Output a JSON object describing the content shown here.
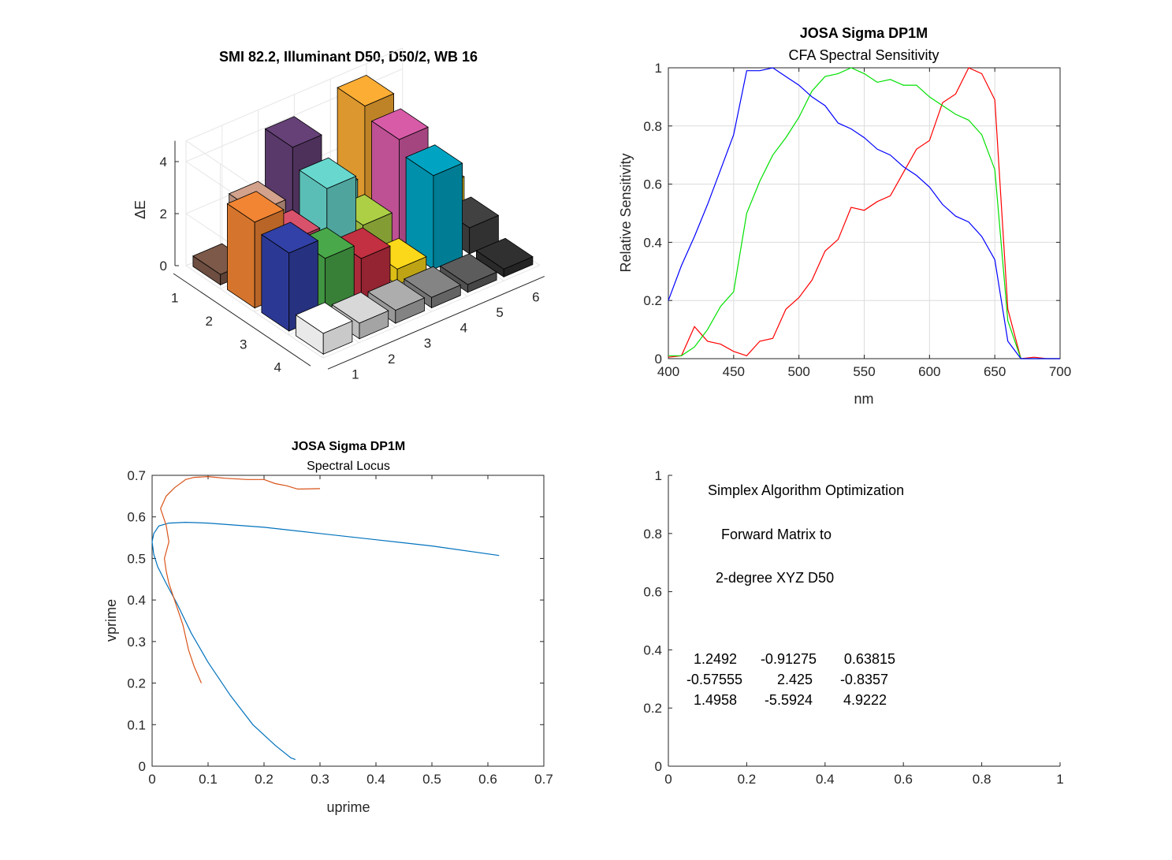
{
  "chart_data": [
    {
      "type": "bar3d",
      "title": "SMI 82.2, Illuminant D50, D50/2, WB 16",
      "zlabel": "ΔE",
      "zticks": [
        "0",
        "2",
        "4"
      ],
      "rows": [
        "1",
        "2",
        "3",
        "4"
      ],
      "cols": [
        "1",
        "2",
        "3",
        "4",
        "5",
        "6"
      ],
      "values": [
        [
          0.4,
          2.2,
          4.1,
          1.8,
          4.5,
          1.2
        ],
        [
          3.3,
          2.0,
          3.4,
          1.4,
          4.1,
          1.6
        ],
        [
          3.0,
          2.2,
          1.6,
          0.6,
          3.6,
          1.0
        ],
        [
          0.8,
          0.6,
          0.5,
          0.4,
          0.3,
          0.3
        ]
      ],
      "colors": [
        [
          "#735244",
          "#c29682",
          "#5e3c6f",
          "#5cc6b8",
          "#e8a030",
          "#f5f5f5"
        ],
        [
          "#e07b2f",
          "#c84c64",
          "#60c8c0",
          "#a0c040",
          "#c8549c",
          "#f0c828"
        ],
        [
          "#2e3c9c",
          "#449c44",
          "#b42c3c",
          "#e8c818",
          "#0098b4",
          "#3c3c3c"
        ],
        [
          "#f5f5f5",
          "#c8c8c8",
          "#a0a0a0",
          "#7a7a7a",
          "#555555",
          "#2c2c2c"
        ]
      ]
    },
    {
      "type": "line",
      "title": "JOSA Sigma DP1M",
      "subtitle": "CFA Spectral Sensitivity",
      "xlabel": "nm",
      "ylabel": "Relative Sensitivity",
      "xlim": [
        400,
        700
      ],
      "ylim": [
        0,
        1
      ],
      "xticks": [
        400,
        450,
        500,
        550,
        600,
        650,
        700
      ],
      "yticks": [
        0,
        0.2,
        0.4,
        0.6,
        0.8,
        1
      ],
      "grid": true,
      "x": [
        400,
        410,
        420,
        430,
        440,
        450,
        460,
        470,
        480,
        490,
        500,
        510,
        520,
        530,
        540,
        550,
        560,
        570,
        580,
        590,
        600,
        610,
        620,
        630,
        640,
        650,
        660,
        670,
        680,
        690,
        700
      ],
      "series": [
        {
          "color": "#ff0000",
          "values": [
            0.005,
            0.01,
            0.11,
            0.06,
            0.05,
            0.025,
            0.01,
            0.06,
            0.07,
            0.17,
            0.21,
            0.27,
            0.37,
            0.41,
            0.52,
            0.51,
            0.54,
            0.56,
            0.64,
            0.72,
            0.75,
            0.88,
            0.91,
            1.0,
            0.98,
            0.89,
            0.17,
            0.0,
            0.005,
            0.0,
            0.0
          ]
        },
        {
          "color": "#00e000",
          "values": [
            0.01,
            0.01,
            0.04,
            0.1,
            0.18,
            0.23,
            0.5,
            0.61,
            0.7,
            0.76,
            0.83,
            0.92,
            0.97,
            0.98,
            1.0,
            0.98,
            0.95,
            0.96,
            0.94,
            0.94,
            0.9,
            0.87,
            0.84,
            0.82,
            0.77,
            0.65,
            0.13,
            0.0,
            0.0,
            0.0,
            0.0
          ]
        },
        {
          "color": "#0000ff",
          "values": [
            0.2,
            0.32,
            0.42,
            0.53,
            0.65,
            0.77,
            0.99,
            0.99,
            1.0,
            0.97,
            0.94,
            0.9,
            0.87,
            0.81,
            0.79,
            0.76,
            0.72,
            0.7,
            0.66,
            0.63,
            0.59,
            0.53,
            0.49,
            0.47,
            0.42,
            0.34,
            0.06,
            0.0,
            0.0,
            0.0,
            0.0
          ]
        }
      ]
    },
    {
      "type": "line",
      "title": "JOSA Sigma DP1M",
      "subtitle": "Spectral Locus",
      "xlabel": "uprime",
      "ylabel": "vprime",
      "xlim": [
        0,
        0.7
      ],
      "ylim": [
        0,
        0.7
      ],
      "xticks": [
        0,
        0.1,
        0.2,
        0.3,
        0.4,
        0.5,
        0.6,
        0.7
      ],
      "yticks": [
        0,
        0.1,
        0.2,
        0.3,
        0.4,
        0.5,
        0.6,
        0.7
      ],
      "grid": false,
      "series": [
        {
          "color": "#0072bd",
          "x": [
            0.256,
            0.248,
            0.22,
            0.18,
            0.14,
            0.1,
            0.07,
            0.045,
            0.025,
            0.01,
            0.003,
            0.0,
            0.003,
            0.012,
            0.03,
            0.06,
            0.1,
            0.2,
            0.3,
            0.4,
            0.5,
            0.62
          ],
          "y": [
            0.016,
            0.02,
            0.05,
            0.1,
            0.17,
            0.25,
            0.32,
            0.39,
            0.44,
            0.48,
            0.51,
            0.54,
            0.56,
            0.578,
            0.585,
            0.587,
            0.585,
            0.575,
            0.56,
            0.545,
            0.53,
            0.507
          ]
        },
        {
          "color": "#d95319",
          "x": [
            0.088,
            0.075,
            0.065,
            0.055,
            0.04,
            0.03,
            0.025,
            0.022,
            0.03,
            0.025,
            0.02,
            0.015,
            0.025,
            0.04,
            0.06,
            0.075,
            0.1,
            0.13,
            0.17,
            0.2,
            0.22,
            0.24,
            0.26,
            0.3
          ],
          "y": [
            0.2,
            0.24,
            0.28,
            0.34,
            0.4,
            0.44,
            0.47,
            0.5,
            0.54,
            0.58,
            0.6,
            0.62,
            0.65,
            0.67,
            0.69,
            0.695,
            0.697,
            0.693,
            0.69,
            0.69,
            0.68,
            0.675,
            0.667,
            0.668
          ]
        }
      ]
    },
    {
      "type": "text",
      "xlim": [
        0,
        1
      ],
      "ylim": [
        0,
        1
      ],
      "xticks": [
        0,
        0.2,
        0.4,
        0.6,
        0.8,
        1
      ],
      "yticks": [
        0,
        0.2,
        0.4,
        0.6,
        0.8,
        1
      ],
      "lines": [
        "Simplex Algorithm Optimization",
        "Forward Matrix to",
        "2-degree XYZ D50"
      ],
      "matrix": [
        [
          "1.2492",
          "-0.91275",
          "0.63815"
        ],
        [
          "-0.57555",
          "2.425",
          "-0.8357"
        ],
        [
          "1.4958",
          "-5.5924",
          "4.9222"
        ]
      ]
    }
  ]
}
